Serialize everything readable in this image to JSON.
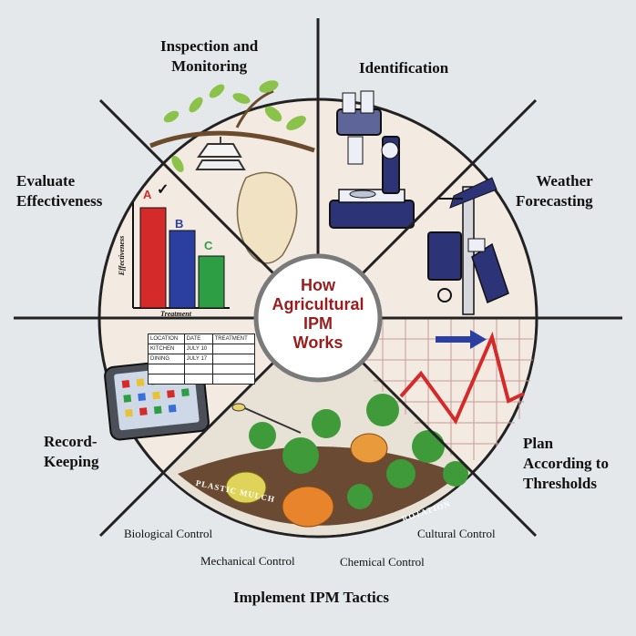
{
  "center": {
    "line1": "How",
    "line2": "Agricultural",
    "line3": "IPM",
    "line4": "Works"
  },
  "labels": {
    "inspection": {
      "line1": "Inspection and",
      "line2": "Monitoring"
    },
    "identification": "Identification",
    "weather": {
      "line1": "Weather",
      "line2": "Forecasting"
    },
    "plan": {
      "line1": "Plan",
      "line2": "According to",
      "line3": "Thresholds"
    },
    "implement": "Implement IPM Tactics",
    "record": {
      "line1": "Record-",
      "line2": "Keeping"
    },
    "evaluate": {
      "line1": "Evaluate",
      "line2": "Effectiveness"
    }
  },
  "tactics": {
    "biological": "Biological Control",
    "mechanical": "Mechanical Control",
    "chemical": "Chemical Control",
    "cultural": "Cultural Control"
  },
  "field_labels": {
    "mulch": "PLASTIC MULCH",
    "rotation": "ROTATION"
  },
  "bar_chart": {
    "ylabel": "Effectiveness",
    "xlabel": "Treatment",
    "bars": [
      {
        "label": "A",
        "value": 1.0,
        "color": "#d42a2a"
      },
      {
        "label": "B",
        "value": 0.77,
        "color": "#2a3fa0"
      },
      {
        "label": "C",
        "value": 0.52,
        "color": "#2e9e44"
      }
    ],
    "check_mark": "✓"
  },
  "record_table": {
    "headers": [
      "LOCATION",
      "DATE",
      "TREATMENT"
    ],
    "rows": [
      [
        "KITCHEN",
        "JULY 10",
        ""
      ],
      [
        "DINING",
        "JULY 17",
        ""
      ],
      [
        "",
        "",
        ""
      ],
      [
        "",
        "",
        ""
      ]
    ]
  },
  "colors": {
    "background": "#e4e8eb",
    "wedge_fill": "#f3ebe1",
    "center_text": "#9b1c1c",
    "threshold_line": "#d42a2a",
    "trend_arrow": "#2a3fa0"
  },
  "icons": [
    "branch-leaves-icon",
    "trap-icon",
    "microscope-icon",
    "weather-station-icon",
    "tablet-icon",
    "plants-icon"
  ]
}
